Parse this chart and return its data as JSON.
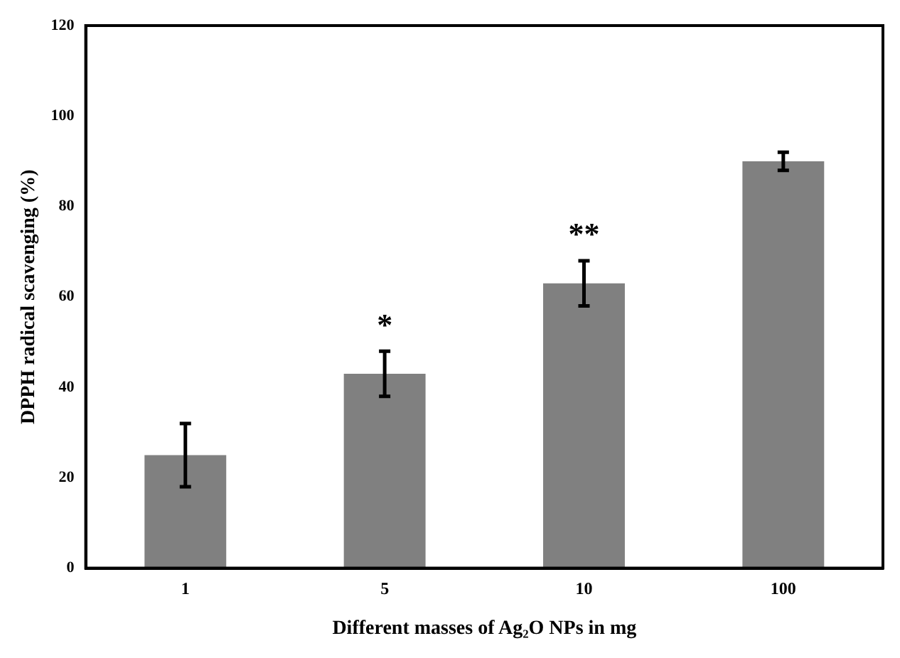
{
  "chart_data": {
    "type": "bar",
    "xlabel": "Different masses of Ag₂O NPs in mg",
    "ylabel": "DPPH radical scavenging (%)",
    "categories": [
      "1",
      "5",
      "10",
      "100"
    ],
    "values": [
      25,
      43,
      63,
      90
    ],
    "errors": [
      7,
      5,
      5,
      2
    ],
    "color": "#808080",
    "ylim": [
      0,
      120
    ],
    "yticks": [
      0,
      20,
      40,
      60,
      80,
      100,
      120
    ],
    "grid": false,
    "legend": false,
    "annotations": [
      {
        "text": "*",
        "x": "5",
        "y": 48
      },
      {
        "text": "**",
        "x": "10",
        "y": 68
      }
    ]
  }
}
